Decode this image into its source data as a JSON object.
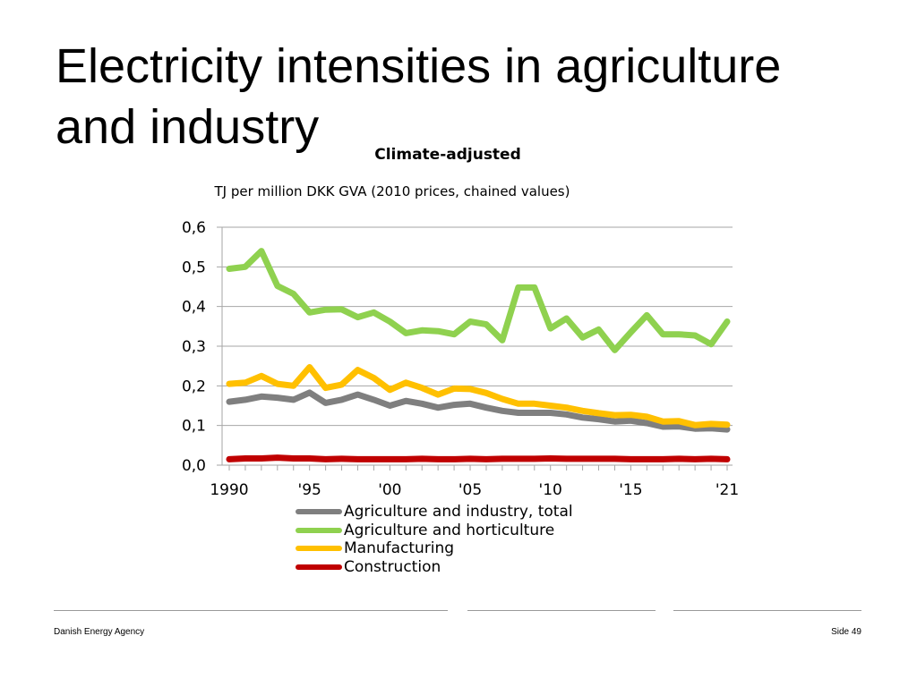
{
  "slide": {
    "title_line1": "Electricity intensities in agriculture",
    "title_line2": "and industry"
  },
  "footer": {
    "organization": "Danish Energy Agency",
    "page": "Side 49"
  },
  "colors": {
    "total": "#7f7f7f",
    "agriculture": "#8fd14f",
    "manufacturing": "#ffc000",
    "construction": "#c00000",
    "grid": "#a6a6a6"
  },
  "chart_data": {
    "type": "line",
    "title": "Climate-adjusted",
    "ylabel": "TJ per million DKK GVA (2010 prices, chained values)",
    "xlabel": "",
    "ylim": [
      0,
      0.6
    ],
    "yticks": [
      "0,0",
      "0,1",
      "0,2",
      "0,3",
      "0,4",
      "0,5",
      "0,6"
    ],
    "xtick_labels": [
      {
        "year": 1990,
        "label": "1990"
      },
      {
        "year": 1995,
        "label": "'95"
      },
      {
        "year": 2000,
        "label": "'00"
      },
      {
        "year": 2005,
        "label": "'05"
      },
      {
        "year": 2010,
        "label": "'10"
      },
      {
        "year": 2015,
        "label": "'15"
      },
      {
        "year": 2021,
        "label": "'21"
      }
    ],
    "x": [
      1990,
      1991,
      1992,
      1993,
      1994,
      1995,
      1996,
      1997,
      1998,
      1999,
      2000,
      2001,
      2002,
      2003,
      2004,
      2005,
      2006,
      2007,
      2008,
      2009,
      2010,
      2011,
      2012,
      2013,
      2014,
      2015,
      2016,
      2017,
      2018,
      2019,
      2020,
      2021
    ],
    "legend_position": "bottom",
    "series": [
      {
        "key": "total",
        "name": "Agriculture and industry, total",
        "values": [
          0.16,
          0.165,
          0.173,
          0.17,
          0.165,
          0.183,
          0.157,
          0.165,
          0.178,
          0.165,
          0.15,
          0.162,
          0.155,
          0.145,
          0.152,
          0.155,
          0.145,
          0.137,
          0.132,
          0.132,
          0.132,
          0.128,
          0.12,
          0.116,
          0.11,
          0.112,
          0.106,
          0.097,
          0.098,
          0.092,
          0.093,
          0.09
        ]
      },
      {
        "key": "agriculture",
        "name": "Agriculture and horticulture",
        "values": [
          0.495,
          0.5,
          0.54,
          0.452,
          0.432,
          0.385,
          0.392,
          0.393,
          0.373,
          0.385,
          0.362,
          0.333,
          0.34,
          0.338,
          0.33,
          0.362,
          0.355,
          0.315,
          0.448,
          0.448,
          0.345,
          0.37,
          0.322,
          0.342,
          0.29,
          0.335,
          0.378,
          0.33,
          0.33,
          0.327,
          0.305,
          0.362
        ]
      },
      {
        "key": "manufacturing",
        "name": "Manufacturing",
        "values": [
          0.205,
          0.208,
          0.225,
          0.205,
          0.2,
          0.247,
          0.195,
          0.203,
          0.24,
          0.22,
          0.19,
          0.208,
          0.195,
          0.178,
          0.193,
          0.192,
          0.182,
          0.167,
          0.155,
          0.155,
          0.15,
          0.145,
          0.137,
          0.131,
          0.126,
          0.127,
          0.122,
          0.11,
          0.111,
          0.101,
          0.104,
          0.102
        ]
      },
      {
        "key": "construction",
        "name": "Construction",
        "values": [
          0.015,
          0.017,
          0.017,
          0.019,
          0.017,
          0.017,
          0.015,
          0.016,
          0.015,
          0.015,
          0.015,
          0.015,
          0.016,
          0.015,
          0.015,
          0.016,
          0.015,
          0.016,
          0.016,
          0.016,
          0.017,
          0.016,
          0.016,
          0.016,
          0.016,
          0.015,
          0.015,
          0.015,
          0.016,
          0.015,
          0.016,
          0.015
        ]
      }
    ]
  }
}
